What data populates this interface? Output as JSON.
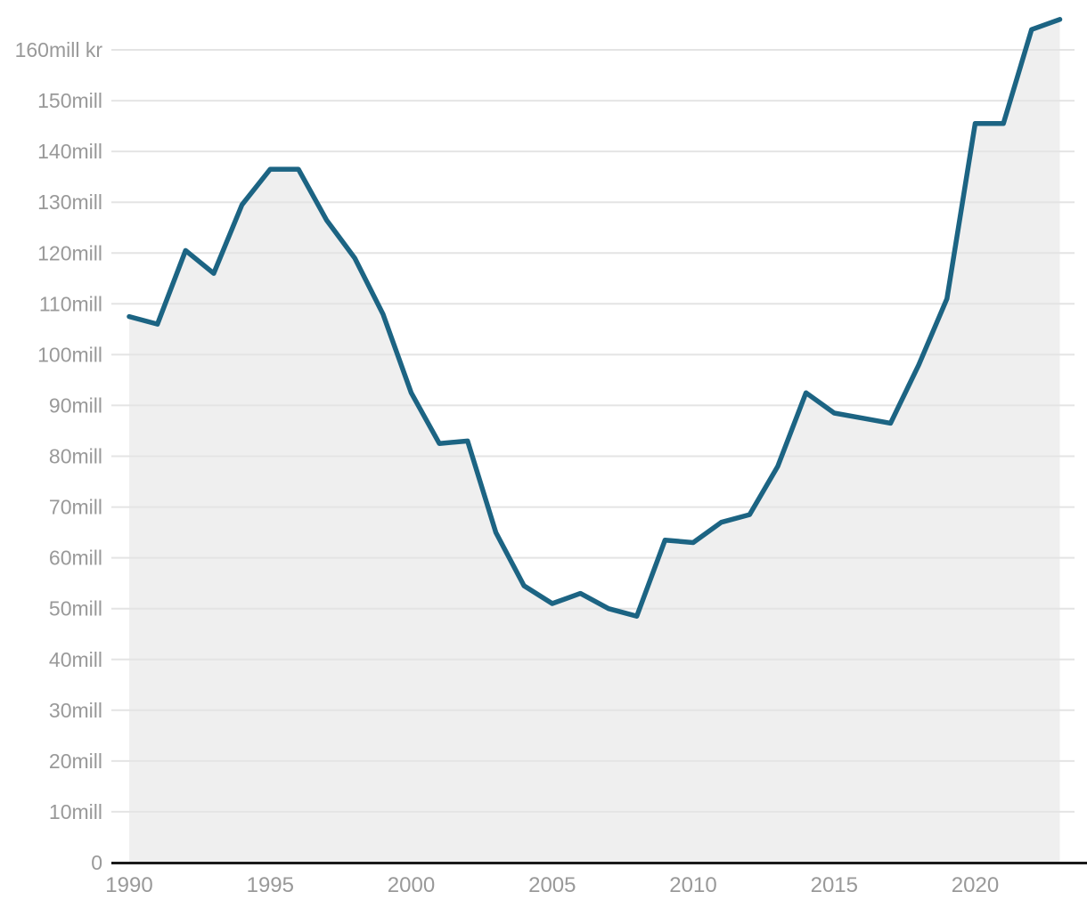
{
  "chart_data": {
    "type": "area",
    "title": "",
    "xlabel": "",
    "ylabel": "",
    "unit": "mill kr",
    "x": [
      1990,
      1991,
      1992,
      1993,
      1994,
      1995,
      1996,
      1997,
      1998,
      1999,
      2000,
      2001,
      2002,
      2003,
      2004,
      2005,
      2006,
      2007,
      2008,
      2009,
      2010,
      2011,
      2012,
      2013,
      2014,
      2015,
      2016,
      2017,
      2018,
      2019,
      2020,
      2021,
      2022,
      2023
    ],
    "values": [
      107.5,
      106,
      120.5,
      116,
      129.5,
      136.5,
      136.5,
      126.5,
      119,
      108,
      92.5,
      82.5,
      83,
      65,
      54.5,
      51,
      53,
      50,
      48.5,
      63.5,
      63,
      67,
      68.5,
      78,
      92.5,
      88.5,
      87.5,
      86.5,
      98,
      111,
      145.5,
      145.5,
      164,
      166
    ],
    "xlim": [
      1990,
      2023
    ],
    "ylim": [
      0,
      170
    ],
    "grid": true,
    "legend": false,
    "xticks": [
      1990,
      1995,
      2000,
      2005,
      2010,
      2015,
      2020
    ],
    "xtick_labels": [
      "1990",
      "1995",
      "2000",
      "2005",
      "2010",
      "2015",
      "2020"
    ],
    "yticks": [
      0,
      10,
      20,
      30,
      40,
      50,
      60,
      70,
      80,
      90,
      100,
      110,
      120,
      130,
      140,
      150,
      160
    ],
    "ytick_labels": [
      "0",
      "10mill",
      "20mill",
      "30mill",
      "40mill",
      "50mill",
      "60mill",
      "70mill",
      "80mill",
      "90mill",
      "100mill",
      "110mill",
      "120mill",
      "130mill",
      "140mill",
      "150mill",
      "160mill kr"
    ]
  },
  "colors": {
    "line": "#1c6483",
    "area_fill": "#efefef",
    "gridline": "#e4e4e4",
    "axis": "#1a1a1a",
    "tick_text": "#999999",
    "background": "#ffffff"
  }
}
